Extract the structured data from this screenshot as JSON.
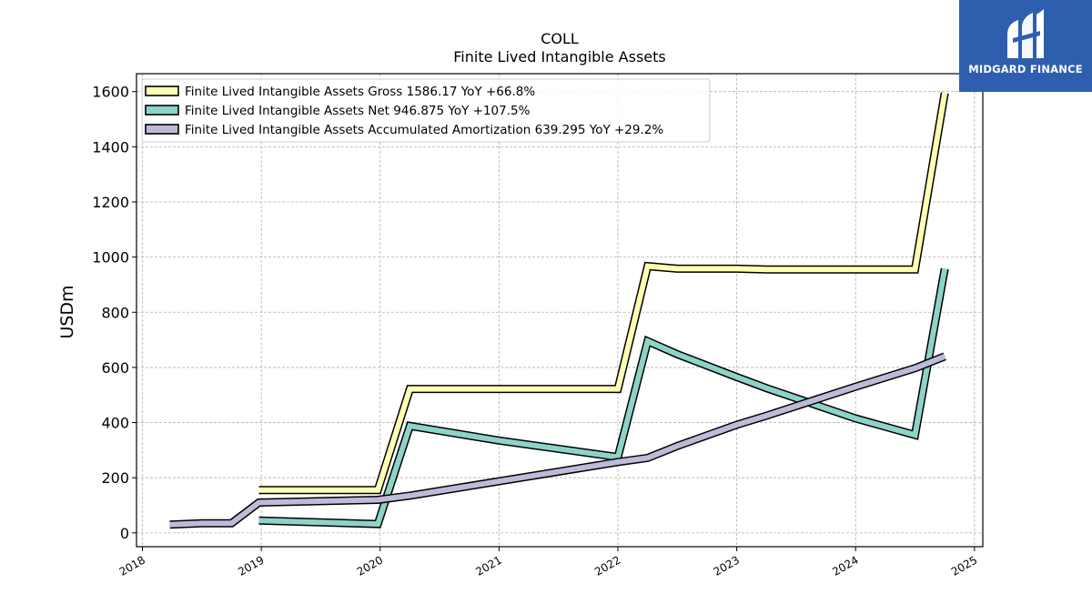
{
  "chart_data": {
    "type": "line",
    "title": "COLL",
    "subtitle": "Finite Lived Intangible Assets",
    "ylabel": "USDm",
    "xlabel": "",
    "xlim": [
      2017.95,
      2025.07
    ],
    "ylim": [
      -50,
      1665
    ],
    "x_ticks": [
      2018,
      2019,
      2020,
      2021,
      2022,
      2023,
      2024,
      2025
    ],
    "x_tick_labels": [
      "2018",
      "2019",
      "2020",
      "2021",
      "2022",
      "2023",
      "2024",
      "2025"
    ],
    "y_ticks": [
      0,
      200,
      400,
      600,
      800,
      1000,
      1200,
      1400,
      1600
    ],
    "y_tick_labels": [
      "0",
      "200",
      "400",
      "600",
      "800",
      "1000",
      "1200",
      "1400",
      "1600"
    ],
    "grid": true,
    "legend_position": "top-left",
    "series": [
      {
        "name": "Finite Lived Intangible Assets Gross  1586.17 YoY +66.8%",
        "color": "#ffffb3",
        "points": [
          [
            2018.98,
            155
          ],
          [
            2019.98,
            155
          ],
          [
            2020.25,
            522
          ],
          [
            2021.0,
            522
          ],
          [
            2022.0,
            522
          ],
          [
            2022.25,
            967
          ],
          [
            2022.5,
            958
          ],
          [
            2023.0,
            958
          ],
          [
            2023.25,
            955
          ],
          [
            2024.0,
            955
          ],
          [
            2024.5,
            955
          ],
          [
            2024.75,
            1595
          ]
        ]
      },
      {
        "name": "Finite Lived Intangible Assets Net  946.875 YoY +107.5%",
        "color": "#8dd3c7",
        "points": [
          [
            2018.98,
            45
          ],
          [
            2019.98,
            32
          ],
          [
            2020.25,
            388
          ],
          [
            2021.0,
            335
          ],
          [
            2022.0,
            275
          ],
          [
            2022.25,
            695
          ],
          [
            2022.5,
            648
          ],
          [
            2023.0,
            565
          ],
          [
            2023.25,
            525
          ],
          [
            2024.0,
            415
          ],
          [
            2024.5,
            355
          ],
          [
            2024.75,
            958
          ]
        ]
      },
      {
        "name": "Finite Lived Intangible Assets Accumulated Amortization  639.295 YoY +29.2%",
        "color": "#bebada",
        "points": [
          [
            2018.23,
            30
          ],
          [
            2018.5,
            35
          ],
          [
            2018.75,
            35
          ],
          [
            2018.98,
            110
          ],
          [
            2019.98,
            120
          ],
          [
            2020.25,
            135
          ],
          [
            2021.0,
            187
          ],
          [
            2022.0,
            257
          ],
          [
            2022.25,
            272
          ],
          [
            2022.5,
            315
          ],
          [
            2023.0,
            392
          ],
          [
            2023.25,
            425
          ],
          [
            2024.0,
            530
          ],
          [
            2024.5,
            597
          ],
          [
            2024.75,
            640
          ]
        ]
      }
    ]
  },
  "logo": {
    "text": "MIDGARD FINANCE",
    "background": "#2e5fae"
  }
}
